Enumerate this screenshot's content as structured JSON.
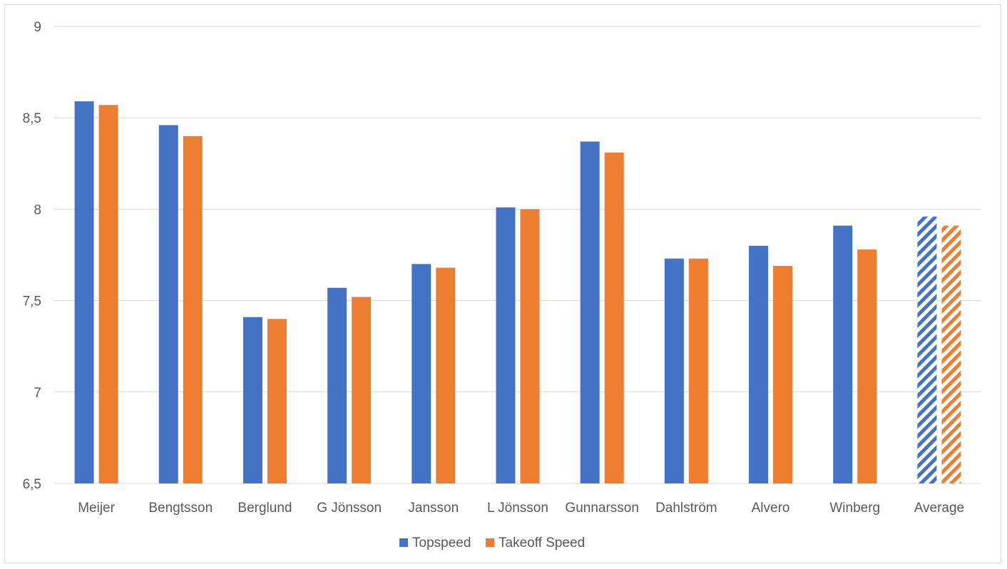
{
  "chart_data": {
    "type": "bar",
    "title": "",
    "xlabel": "",
    "ylabel": "",
    "ylim": [
      6.5,
      9
    ],
    "yticks": [
      "6,5",
      "7",
      "7,5",
      "8",
      "8,5",
      "9"
    ],
    "ytick_values": [
      6.5,
      7,
      7.5,
      8,
      8.5,
      9
    ],
    "grid": true,
    "legend_position": "bottom",
    "categories": [
      "Meijer",
      "Bengtsson",
      "Berglund",
      "G Jönsson",
      "Jansson",
      "L Jönsson",
      "Gunnarsson",
      "Dahlström",
      "Alvero",
      "Winberg",
      "Average"
    ],
    "series": [
      {
        "name": "Topspeed",
        "color": "#4472c4",
        "values": [
          8.59,
          8.46,
          7.41,
          7.57,
          7.7,
          8.01,
          8.37,
          7.73,
          7.8,
          7.91,
          7.96
        ]
      },
      {
        "name": "Takeoff Speed",
        "color": "#ed7d31",
        "values": [
          8.57,
          8.4,
          7.4,
          7.52,
          7.68,
          8.0,
          8.31,
          7.73,
          7.69,
          7.78,
          7.91
        ]
      }
    ],
    "hatched_categories": [
      "Average"
    ]
  }
}
